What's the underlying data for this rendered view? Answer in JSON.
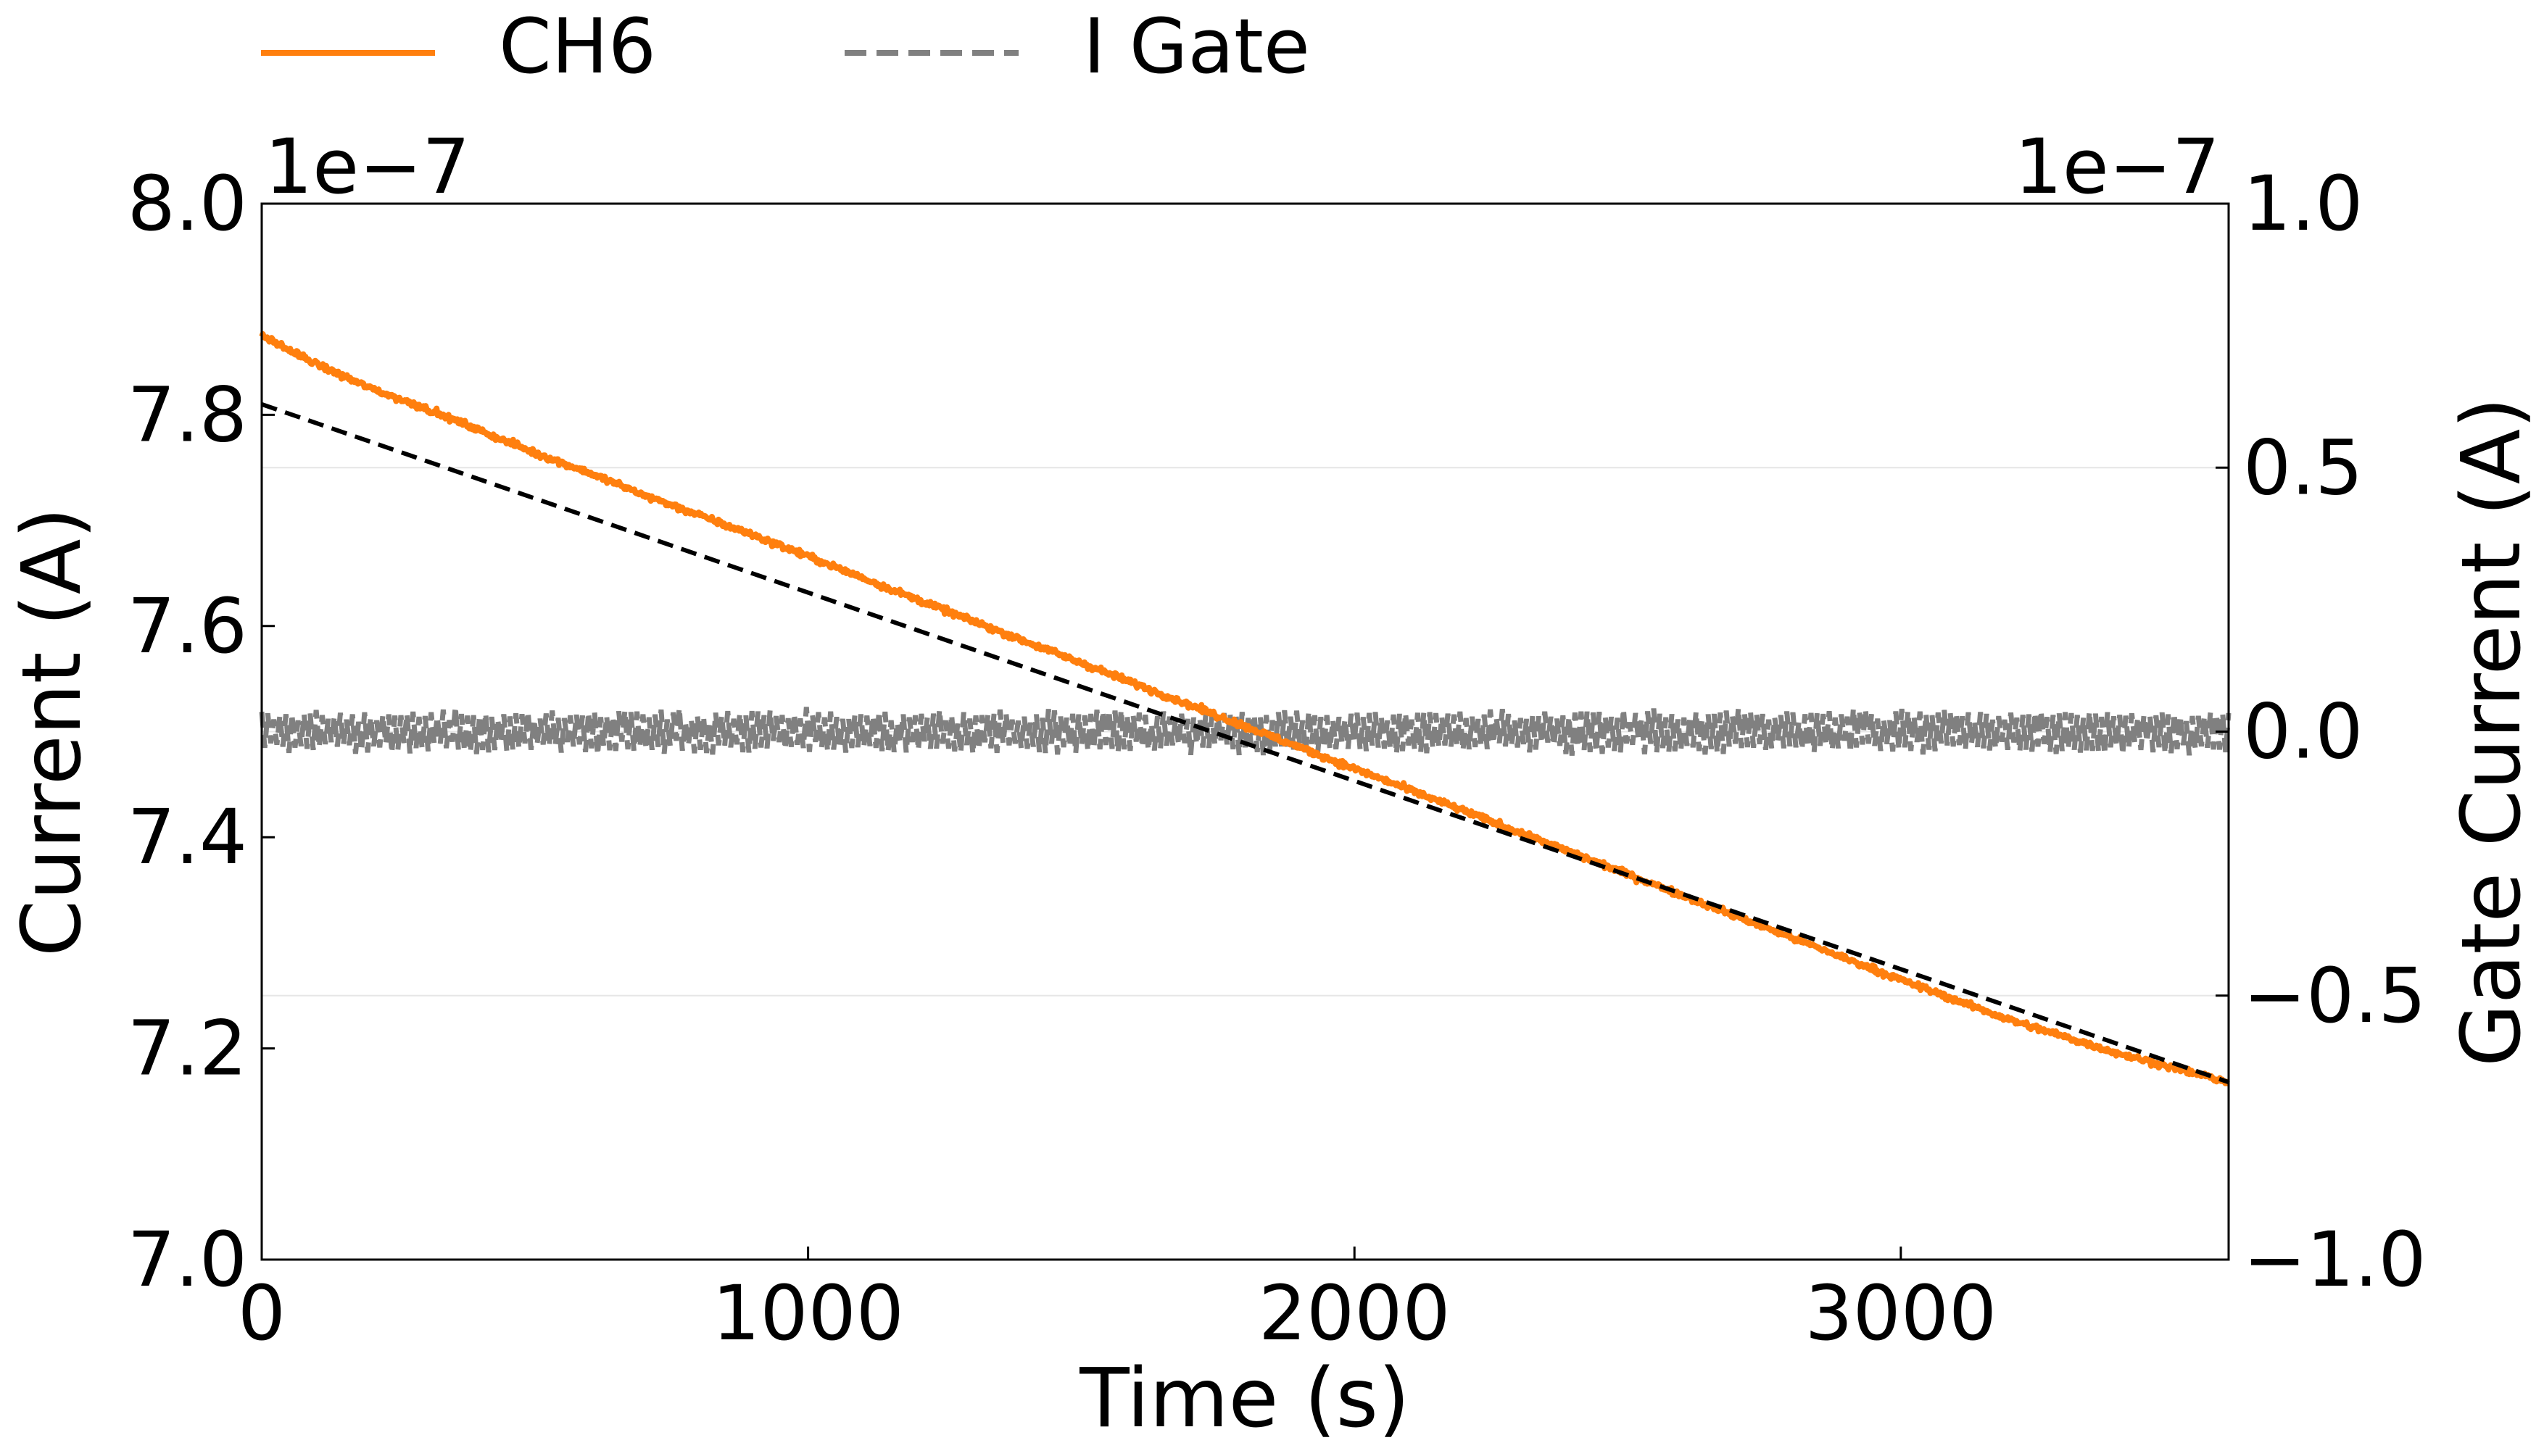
{
  "chart_data": {
    "type": "line",
    "title": "",
    "xlabel": "Time (s)",
    "ylabel": "Current (A)",
    "y2label": "Gate Current (A)",
    "xlim": [
      0,
      3600
    ],
    "ylim": [
      7.0,
      8.0
    ],
    "y2lim": [
      -1.0,
      1.0
    ],
    "y_offset_label": "1e−7",
    "y2_offset_label": "1e−7",
    "x_ticks": [
      0,
      1000,
      2000,
      3000
    ],
    "x_tick_labels": [
      "0",
      "1000",
      "2000",
      "3000"
    ],
    "y_ticks": [
      7.0,
      7.2,
      7.4,
      7.6,
      7.8,
      8.0
    ],
    "y_tick_labels": [
      "7.0",
      "7.2",
      "7.4",
      "7.6",
      "7.8",
      "8.0"
    ],
    "y2_ticks": [
      -1.0,
      -0.5,
      0.0,
      0.5,
      1.0
    ],
    "y2_tick_labels": [
      "−1.0",
      "−0.5",
      "0.0",
      "0.5",
      "1.0"
    ],
    "grid": "horizontal on right axis",
    "legend_position": "top-left, above plot",
    "series": [
      {
        "name": "CH6",
        "axis": "left",
        "style": "solid",
        "color": "#ff7f0e",
        "x": [
          0,
          100,
          200,
          300,
          400,
          500,
          600,
          700,
          800,
          900,
          1000,
          1200,
          1400,
          1600,
          1800,
          2000,
          2200,
          2400,
          2600,
          2800,
          3000,
          3200,
          3400,
          3600
        ],
        "y": [
          7.875,
          7.848,
          7.825,
          7.806,
          7.785,
          7.764,
          7.745,
          7.724,
          7.705,
          7.686,
          7.666,
          7.625,
          7.585,
          7.545,
          7.505,
          7.465,
          7.425,
          7.385,
          7.345,
          7.305,
          7.265,
          7.227,
          7.195,
          7.168
        ],
        "noise": 0.005
      },
      {
        "name": "fit",
        "axis": "left",
        "style": "dashed",
        "color": "#000000",
        "x": [
          0,
          3600
        ],
        "y": [
          7.81,
          7.168
        ]
      },
      {
        "name": "I Gate",
        "axis": "right",
        "style": "dashed",
        "color": "#808080",
        "x_range": [
          0,
          3600
        ],
        "center": 0.0,
        "amplitude": 0.04,
        "noise": 0.012,
        "points": 650
      }
    ],
    "legend": [
      {
        "label": "CH6",
        "color": "#ff7f0e",
        "style": "solid"
      },
      {
        "label": "I Gate",
        "color": "#808080",
        "style": "dashed"
      }
    ]
  }
}
